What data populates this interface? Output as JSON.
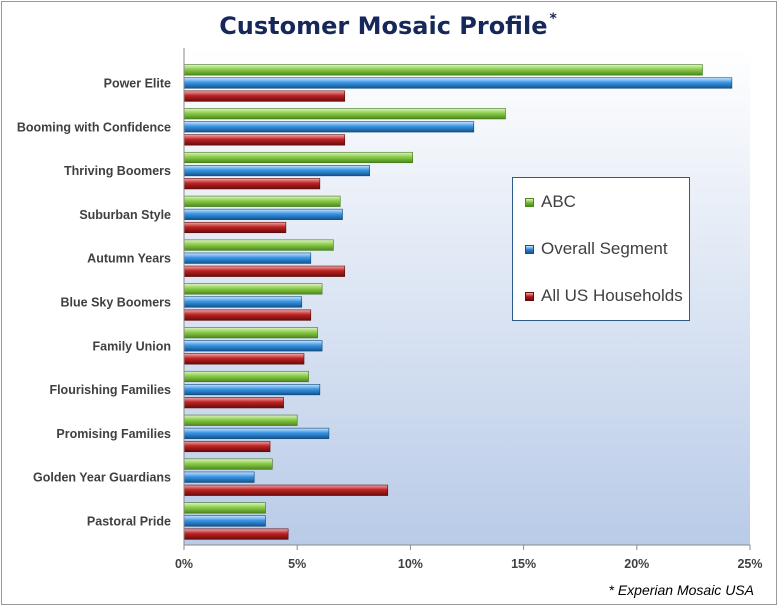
{
  "chart_data": {
    "type": "bar",
    "orientation": "horizontal",
    "title": "Customer Mosaic Profile",
    "title_marker": "*",
    "categories": [
      "Power Elite",
      "Booming with Confidence",
      "Thriving Boomers",
      "Suburban Style",
      "Autumn Years",
      "Blue Sky Boomers",
      "Family Union",
      "Flourishing Families",
      "Promising Families",
      "Golden Year Guardians",
      "Pastoral Pride"
    ],
    "series": [
      {
        "name": "ABC",
        "color": "#7dba3b",
        "values": [
          22.9,
          14.2,
          10.1,
          6.9,
          6.6,
          6.1,
          5.9,
          5.5,
          5.0,
          3.9,
          3.6
        ]
      },
      {
        "name": "Overall Segment",
        "color": "#2f86d6",
        "values": [
          24.2,
          12.8,
          8.2,
          7.0,
          5.6,
          5.2,
          6.1,
          6.0,
          6.4,
          3.1,
          3.6
        ]
      },
      {
        "name": "All US Households",
        "color": "#b01c1c",
        "values": [
          7.1,
          7.1,
          6.0,
          4.5,
          7.1,
          5.6,
          5.3,
          4.4,
          3.8,
          9.0,
          4.6
        ]
      }
    ],
    "xlim": [
      0,
      25
    ],
    "xticks": [
      "0%",
      "5%",
      "10%",
      "15%",
      "20%",
      "25%"
    ],
    "xtick_values": [
      0,
      5,
      10,
      15,
      20,
      25
    ],
    "legend_position": "right",
    "grid": false
  },
  "footnote": "* Experian Mosaic USA"
}
